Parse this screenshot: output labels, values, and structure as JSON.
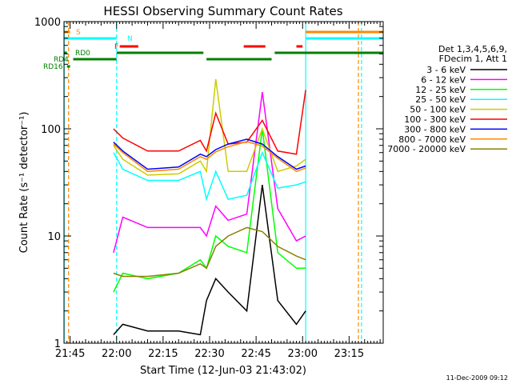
{
  "chart_data": {
    "type": "line",
    "title": "HESSI Observing Summary Count Rates",
    "ylabel": "Count Rate (s⁻¹ detector⁻¹)",
    "xlabel": "Start Time (12-Jun-03 21:43:02)",
    "y_scale": "log",
    "ylim": [
      1,
      1000
    ],
    "xlim": [
      "21:43:02",
      "23:26"
    ],
    "x_ticks": [
      "21:45",
      "22:00",
      "22:15",
      "22:30",
      "22:45",
      "23:00",
      "23:15"
    ],
    "y_ticks": [
      "1",
      "10",
      "100",
      "1000"
    ],
    "legend_header": [
      "Det 1,3,4,5,6,9,",
      "FDecim 1, Att 1"
    ],
    "legend_position": "right",
    "footer_date": "11-Dec-2009 09:12",
    "x": [
      "21:59",
      "22:02",
      "22:10",
      "22:20",
      "22:27",
      "22:29",
      "22:32",
      "22:36",
      "22:42",
      "22:47",
      "22:52",
      "22:58",
      "23:01"
    ],
    "series": [
      {
        "name": "3 - 6 keV",
        "color": "#000000",
        "values": [
          1.2,
          1.5,
          1.3,
          1.3,
          1.2,
          2.5,
          4.0,
          3.0,
          2.0,
          30,
          2.5,
          1.5,
          2.0
        ]
      },
      {
        "name": "6 - 12 keV",
        "color": "#ff00ff",
        "values": [
          7,
          15,
          12,
          12,
          12,
          10,
          19,
          14,
          16,
          220,
          18,
          9,
          10
        ]
      },
      {
        "name": "12 - 25 keV",
        "color": "#00ff00",
        "values": [
          3,
          4.5,
          4,
          4.5,
          6,
          5,
          10,
          8,
          7,
          100,
          7,
          5,
          5
        ]
      },
      {
        "name": "25 - 50 keV",
        "color": "#00ffff",
        "values": [
          60,
          42,
          33,
          33,
          40,
          22,
          40,
          22,
          24,
          60,
          28,
          30,
          32
        ]
      },
      {
        "name": "50 - 100 keV",
        "color": "#cccc00",
        "values": [
          70,
          52,
          37,
          38,
          50,
          40,
          290,
          40,
          40,
          100,
          40,
          45,
          52
        ]
      },
      {
        "name": "100 - 300 keV",
        "color": "#ff0000",
        "values": [
          100,
          82,
          62,
          62,
          78,
          62,
          140,
          72,
          75,
          120,
          62,
          58,
          230
        ]
      },
      {
        "name": "300 - 800 keV",
        "color": "#0000ff",
        "values": [
          75,
          62,
          42,
          44,
          58,
          55,
          64,
          72,
          80,
          72,
          55,
          42,
          45
        ]
      },
      {
        "name": "800 - 7000 keV",
        "color": "#ff8800",
        "values": [
          72,
          60,
          40,
          42,
          55,
          52,
          61,
          68,
          76,
          69,
          53,
          40,
          43
        ]
      },
      {
        "name": "7000 - 20000 keV",
        "color": "#8b8000",
        "values": [
          4.5,
          4.2,
          4.2,
          4.5,
          5.5,
          5,
          8,
          10,
          12,
          11,
          8,
          6.5,
          6
        ]
      }
    ],
    "attenuator_bars": [
      {
        "label": "S",
        "color": "#ff8800",
        "segments": [
          [
            "21:43",
            "21:45"
          ],
          [
            "23:01",
            "23:26"
          ]
        ]
      },
      {
        "label": "N",
        "color": "#00ffff",
        "segments": [
          [
            "21:43",
            "22:00"
          ],
          [
            "23:01",
            "23:26"
          ]
        ]
      },
      {
        "label": "F",
        "color": "#ff0000",
        "segments": [
          [
            "22:01",
            "22:07"
          ],
          [
            "22:41",
            "22:48"
          ],
          [
            "22:58",
            "23:00"
          ]
        ]
      },
      {
        "label": "RD0",
        "color": "#008000",
        "segments": [
          [
            "21:43",
            "21:44"
          ],
          [
            "22:00",
            "22:28"
          ],
          [
            "22:51",
            "23:26"
          ]
        ]
      },
      {
        "label": "RD4",
        "color": "#008000",
        "segments": [
          [
            "21:46",
            "22:00"
          ],
          [
            "22:29",
            "22:50"
          ]
        ]
      },
      {
        "label": "RD16",
        "color": "#008000",
        "segments": [
          [
            "21:44",
            "21:45"
          ]
        ]
      }
    ],
    "vertical_markers": [
      {
        "time": "21:43:05",
        "color": "#00ffff",
        "style": "solid"
      },
      {
        "time": "21:44:30",
        "color": "#ff8800",
        "style": "dashed"
      },
      {
        "time": "22:00",
        "color": "#00ffff",
        "style": "dashed"
      },
      {
        "time": "23:01",
        "color": "#00ffff",
        "style": "solid"
      },
      {
        "time": "23:18",
        "color": "#ff8800",
        "style": "dashed"
      },
      {
        "time": "23:19",
        "color": "#00ffff",
        "style": "dashed"
      }
    ]
  }
}
